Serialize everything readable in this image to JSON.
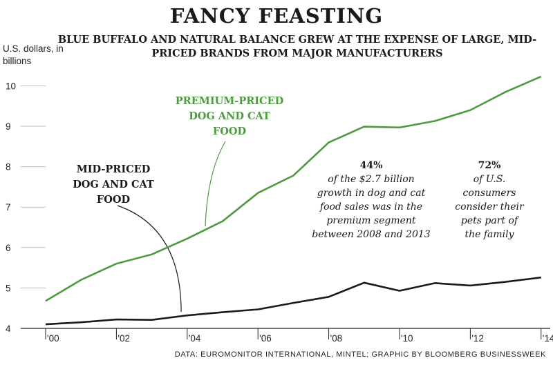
{
  "chart_data": {
    "type": "line",
    "title": "FANCY FEASTING",
    "subtitle": "BLUE BUFFALO AND NATURAL BALANCE GREW AT THE EXPENSE OF LARGE, MID-PRICED BRANDS FROM MAJOR MANUFACTURERS",
    "ylabel": "U.S. dollars, in billions",
    "xlabel": "",
    "x": [
      2000,
      2001,
      2002,
      2003,
      2004,
      2005,
      2006,
      2007,
      2008,
      2009,
      2010,
      2011,
      2012,
      2013,
      2014
    ],
    "x_tick_labels": [
      "'00",
      "'02",
      "'04",
      "'06",
      "'08",
      "'10",
      "'12",
      "'14"
    ],
    "x_tick_values": [
      2000,
      2002,
      2004,
      2006,
      2008,
      2010,
      2012,
      2014
    ],
    "y_tick_labels": [
      "4",
      "5",
      "6",
      "7",
      "8",
      "9",
      "10"
    ],
    "y_tick_values": [
      4,
      5,
      6,
      7,
      8,
      9,
      10
    ],
    "ylim": [
      4,
      10.3
    ],
    "xlim": [
      2000,
      2014.2
    ],
    "grid": "horizontal",
    "series": [
      {
        "name": "PREMIUM-PRICED DOG AND CAT FOOD",
        "name_lines": [
          "PREMIUM-PRICED",
          "DOG AND CAT",
          "FOOD"
        ],
        "color": "#4e9a3f",
        "values": [
          4.68,
          5.2,
          5.6,
          5.83,
          6.22,
          6.65,
          7.35,
          7.78,
          8.6,
          8.99,
          8.97,
          9.13,
          9.4,
          9.85,
          10.23
        ]
      },
      {
        "name": "MID-PRICED DOG AND CAT FOOD",
        "name_lines": [
          "MID-PRICED",
          "DOG AND CAT",
          "FOOD"
        ],
        "color": "#1a1a1a",
        "values": [
          4.1,
          4.15,
          4.22,
          4.21,
          4.32,
          4.4,
          4.47,
          4.63,
          4.78,
          5.13,
          4.93,
          5.12,
          5.06,
          5.15,
          5.26
        ]
      }
    ],
    "annotations": [
      {
        "bold": "44%",
        "lines": [
          "of the $2.7 billion",
          "growth in dog and cat",
          "food sales was in the",
          "premium segment",
          "between 2008 and 2013"
        ]
      },
      {
        "bold": "72%",
        "lines": [
          "of U.S.",
          "consumers",
          "consider their",
          "pets part of",
          "the family"
        ]
      }
    ]
  },
  "source": "DATA: EUROMONITOR INTERNATIONAL, MINTEL; GRAPHIC BY BLOOMBERG BUSINESSWEEK",
  "colors": {
    "premium": "#4e9a3f",
    "mid": "#1a1a1a",
    "grid": "#bdbdbd"
  }
}
